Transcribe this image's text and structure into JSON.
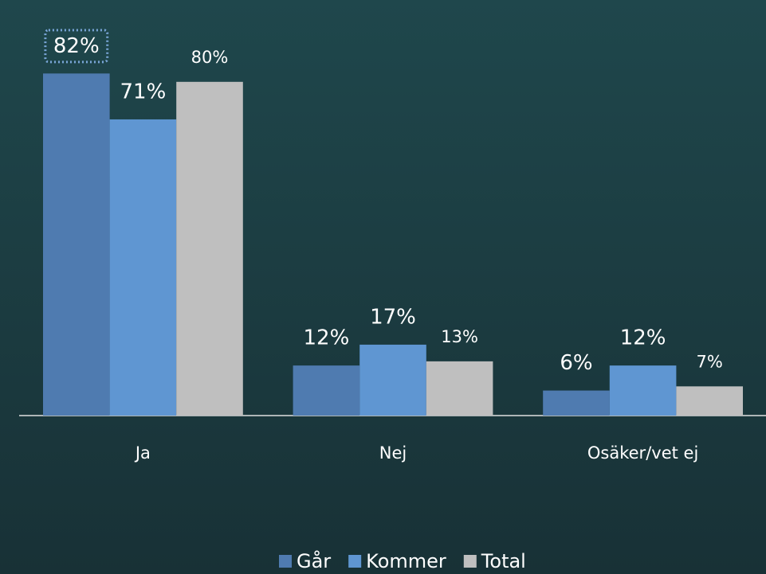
{
  "chart_data": {
    "type": "bar",
    "categories": [
      "Ja",
      "Nej",
      "Osäker/vet ej"
    ],
    "series": [
      {
        "name": "Går",
        "color": "#4f7bb0",
        "values": [
          82,
          12,
          6
        ],
        "value_labels": [
          "82%",
          "12%",
          "6%"
        ]
      },
      {
        "name": "Kommer",
        "color": "#5f96d2",
        "values": [
          71,
          17,
          12
        ],
        "value_labels": [
          "71%",
          "17%",
          "12%"
        ]
      },
      {
        "name": "Total",
        "color": "#bfbfbf",
        "values": [
          80,
          13,
          7
        ],
        "value_labels": [
          "80%",
          "13%",
          "7%"
        ]
      }
    ],
    "legend": "bottom"
  }
}
